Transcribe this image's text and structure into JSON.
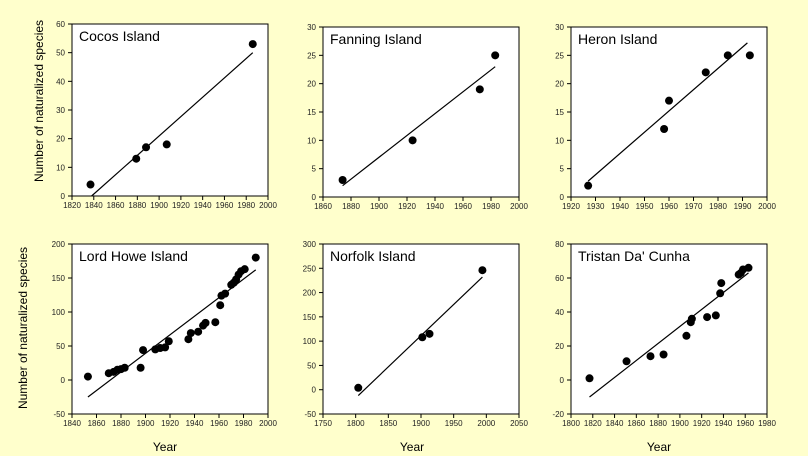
{
  "figure": {
    "ylabel": "Number of naturalized species",
    "xlabel": "Year"
  },
  "chart_data": [
    {
      "type": "scatter",
      "title": "Cocos Island",
      "xlabel": "",
      "ylabel": "Number of naturalized species",
      "xlim": [
        1820,
        2000
      ],
      "ylim": [
        0,
        60
      ],
      "xticks": [
        1820,
        1840,
        1860,
        1880,
        1900,
        1920,
        1940,
        1960,
        1980,
        2000
      ],
      "yticks": [
        0,
        10,
        20,
        30,
        40,
        50,
        60
      ],
      "points": [
        [
          1837,
          4
        ],
        [
          1879,
          13
        ],
        [
          1888,
          17
        ],
        [
          1907,
          18
        ],
        [
          1986,
          53
        ]
      ],
      "fit": [
        [
          1838,
          0
        ],
        [
          1986,
          50
        ]
      ],
      "grid": false
    },
    {
      "type": "scatter",
      "title": "Fanning Island",
      "xlabel": "",
      "ylabel": "",
      "xlim": [
        1860,
        2000
      ],
      "ylim": [
        0,
        30
      ],
      "xticks": [
        1860,
        1880,
        1900,
        1920,
        1940,
        1960,
        1980,
        2000
      ],
      "yticks": [
        0,
        5,
        10,
        15,
        20,
        25,
        30
      ],
      "points": [
        [
          1874,
          3
        ],
        [
          1924,
          10
        ],
        [
          1972,
          19
        ],
        [
          1983,
          25
        ]
      ],
      "fit": [
        [
          1874,
          2
        ],
        [
          1983,
          23
        ]
      ],
      "grid": false
    },
    {
      "type": "scatter",
      "title": "Heron Island",
      "xlabel": "",
      "ylabel": "",
      "xlim": [
        1920,
        2000
      ],
      "ylim": [
        0,
        30
      ],
      "xticks": [
        1920,
        1930,
        1940,
        1950,
        1960,
        1970,
        1980,
        1990,
        2000
      ],
      "yticks": [
        0,
        5,
        10,
        15,
        20,
        25,
        30
      ],
      "points": [
        [
          1927,
          2
        ],
        [
          1958,
          12
        ],
        [
          1960,
          17
        ],
        [
          1975,
          22
        ],
        [
          1984,
          25
        ],
        [
          1993,
          25
        ]
      ],
      "fit": [
        [
          1927,
          2.8
        ],
        [
          1992,
          27.2
        ]
      ],
      "grid": false
    },
    {
      "type": "scatter",
      "title": "Lord Howe Island",
      "xlabel": "Year",
      "ylabel": "Number of naturalized species",
      "xlim": [
        1840,
        2000
      ],
      "ylim": [
        -50,
        200
      ],
      "xticks": [
        1840,
        1860,
        1880,
        1900,
        1920,
        1940,
        1960,
        1980,
        2000
      ],
      "yticks": [
        -50,
        0,
        50,
        100,
        150,
        200
      ],
      "points": [
        [
          1853,
          5
        ],
        [
          1870,
          10
        ],
        [
          1874,
          12
        ],
        [
          1877,
          15
        ],
        [
          1880,
          16
        ],
        [
          1883,
          18
        ],
        [
          1896,
          18
        ],
        [
          1898,
          44
        ],
        [
          1908,
          45
        ],
        [
          1912,
          47
        ],
        [
          1916,
          48
        ],
        [
          1919,
          57
        ],
        [
          1935,
          60
        ],
        [
          1937,
          69
        ],
        [
          1943,
          71
        ],
        [
          1947,
          80
        ],
        [
          1949,
          84
        ],
        [
          1957,
          85
        ],
        [
          1961,
          110
        ],
        [
          1962,
          124
        ],
        [
          1965,
          127
        ],
        [
          1970,
          140
        ],
        [
          1972,
          143
        ],
        [
          1974,
          148
        ],
        [
          1976,
          155
        ],
        [
          1978,
          160
        ],
        [
          1981,
          163
        ],
        [
          1990,
          180
        ]
      ],
      "fit": [
        [
          1853,
          -25
        ],
        [
          1990,
          162
        ]
      ],
      "grid": false
    },
    {
      "type": "scatter",
      "title": "Norfolk Island",
      "xlabel": "Year",
      "ylabel": "",
      "xlim": [
        1750,
        2050
      ],
      "ylim": [
        -50,
        300
      ],
      "xticks": [
        1750,
        1800,
        1850,
        1900,
        1950,
        2000,
        2050
      ],
      "yticks": [
        -50,
        0,
        50,
        100,
        150,
        200,
        250,
        300
      ],
      "points": [
        [
          1804,
          4
        ],
        [
          1902,
          108
        ],
        [
          1913,
          115
        ],
        [
          1994,
          246
        ]
      ],
      "fit": [
        [
          1804,
          -12
        ],
        [
          1994,
          232
        ]
      ],
      "grid": false
    },
    {
      "type": "scatter",
      "title": "Tristan Da' Cunha",
      "xlabel": "Year",
      "ylabel": "",
      "xlim": [
        1800,
        1980
      ],
      "ylim": [
        -20,
        80
      ],
      "xticks": [
        1800,
        1820,
        1840,
        1860,
        1880,
        1900,
        1920,
        1940,
        1960,
        1980
      ],
      "yticks": [
        -20,
        0,
        20,
        40,
        60,
        80
      ],
      "points": [
        [
          1817,
          1
        ],
        [
          1851,
          11
        ],
        [
          1873,
          14
        ],
        [
          1885,
          15
        ],
        [
          1906,
          26
        ],
        [
          1910,
          34
        ],
        [
          1911,
          36
        ],
        [
          1925,
          37
        ],
        [
          1933,
          38
        ],
        [
          1937,
          51
        ],
        [
          1938,
          57
        ],
        [
          1954,
          62
        ],
        [
          1956,
          63
        ],
        [
          1958,
          65
        ],
        [
          1963,
          66
        ]
      ],
      "fit": [
        [
          1817,
          -10
        ],
        [
          1963,
          63
        ]
      ],
      "grid": false
    }
  ]
}
